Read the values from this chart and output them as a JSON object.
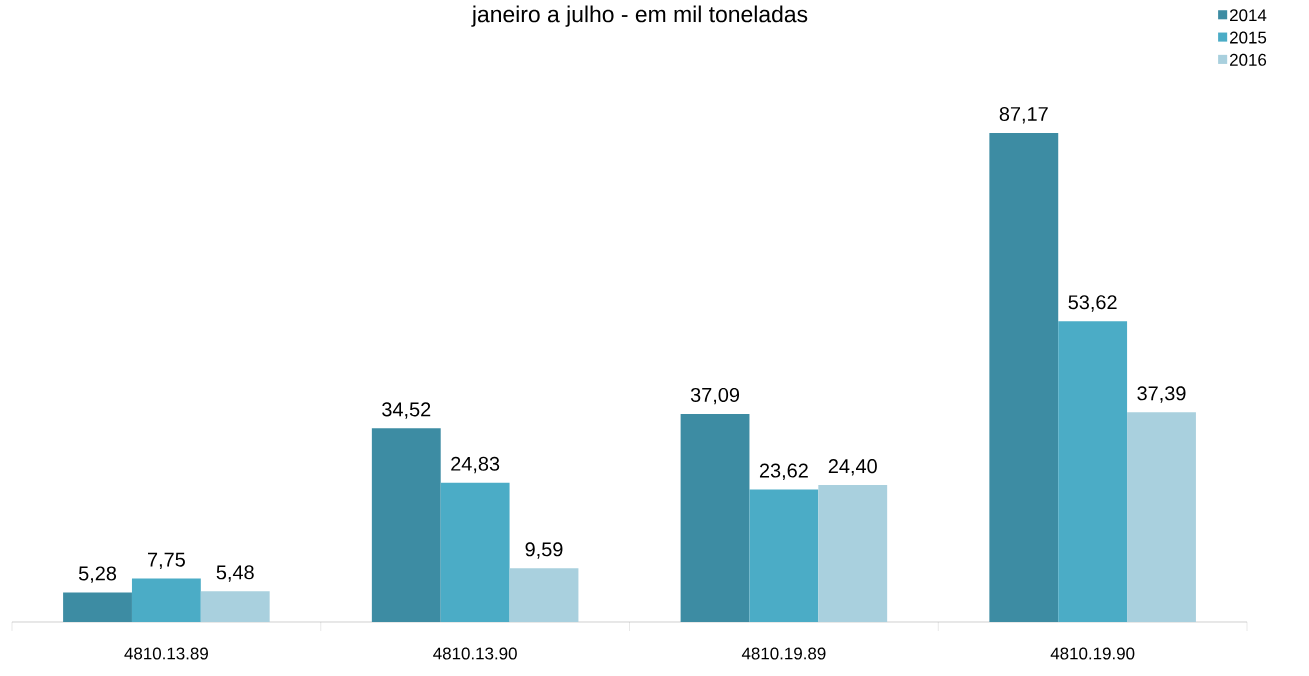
{
  "chart_data": {
    "type": "bar",
    "title": "janeiro a julho - em mil toneladas",
    "categories": [
      "4810.13.89",
      "4810.13.90",
      "4810.19.89",
      "4810.19.90"
    ],
    "series": [
      {
        "name": "2014",
        "color": "#3d8ca3",
        "values": [
          5.28,
          34.52,
          37.09,
          87.17
        ],
        "value_labels": [
          "5,28",
          "34,52",
          "37,09",
          "87,17"
        ]
      },
      {
        "name": "2015",
        "color": "#4bacc6",
        "values": [
          7.75,
          24.83,
          23.62,
          53.62
        ],
        "value_labels": [
          "7,75",
          "24,83",
          "23,62",
          "53,62"
        ]
      },
      {
        "name": "2016",
        "color": "#a9d0de",
        "values": [
          5.48,
          9.59,
          24.4,
          37.39
        ],
        "value_labels": [
          "5,48",
          "9,59",
          "24,40",
          "37,39"
        ]
      }
    ],
    "legend": "top right"
  }
}
